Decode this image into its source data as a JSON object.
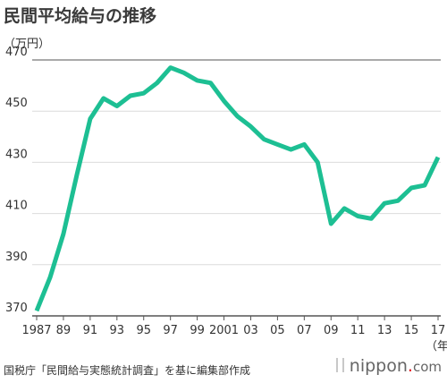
{
  "title": "民間平均給与の推移",
  "source": "国税庁「民間給与実態統計調査」を基に編集部作成",
  "brand": {
    "name": "nippon",
    "dot": ".",
    "suffix": "com"
  },
  "colors": {
    "line": "#1dbf93",
    "grid": "#dcdcdc",
    "axis": "#555555"
  },
  "chart_data": {
    "type": "line",
    "ylabel": "（万円）",
    "xlabel": "（年）",
    "ylim": [
      370,
      470
    ],
    "yticks": [
      370,
      390,
      410,
      430,
      450,
      470
    ],
    "xlim": [
      1987,
      2017
    ],
    "xticks": [
      {
        "year": 1987,
        "label": "1987"
      },
      {
        "year": 1989,
        "label": "89"
      },
      {
        "year": 1991,
        "label": "91"
      },
      {
        "year": 1993,
        "label": "93"
      },
      {
        "year": 1995,
        "label": "95"
      },
      {
        "year": 1997,
        "label": "97"
      },
      {
        "year": 1999,
        "label": "99"
      },
      {
        "year": 2001,
        "label": "2001"
      },
      {
        "year": 2003,
        "label": "03"
      },
      {
        "year": 2005,
        "label": "05"
      },
      {
        "year": 2007,
        "label": "07"
      },
      {
        "year": 2009,
        "label": "09"
      },
      {
        "year": 2011,
        "label": "11"
      },
      {
        "year": 2013,
        "label": "13"
      },
      {
        "year": 2015,
        "label": "15"
      },
      {
        "year": 2017,
        "label": "17"
      }
    ],
    "series": [
      {
        "x": [
          1987,
          1988,
          1989,
          1990,
          1991,
          1992,
          1993,
          1994,
          1995,
          1996,
          1997,
          1998,
          1999,
          2000,
          2001,
          2002,
          2003,
          2004,
          2005,
          2006,
          2007,
          2008,
          2009,
          2010,
          2011,
          2012,
          2013,
          2014,
          2015,
          2016,
          2017
        ],
        "values": [
          372,
          385,
          402,
          425,
          447,
          455,
          452,
          456,
          457,
          461,
          467,
          465,
          462,
          461,
          454,
          448,
          444,
          439,
          437,
          435,
          437,
          430,
          406,
          412,
          409,
          408,
          414,
          415,
          420,
          421,
          432
        ]
      }
    ]
  }
}
